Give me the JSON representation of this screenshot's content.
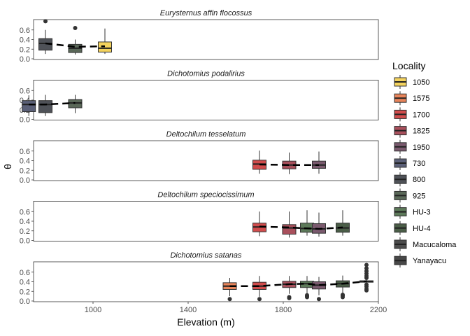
{
  "chart_data": {
    "type": "box",
    "xlabel": "Elevation (m)",
    "ylabel": "θ",
    "xlim": [
      750,
      2200
    ],
    "xticks": [
      1000,
      1400,
      1800,
      2200
    ],
    "ylim": [
      0,
      0.8
    ],
    "yticks": [
      0.0,
      0.2,
      0.4,
      0.6
    ],
    "ytick_labels": [
      "0.0",
      "0.2",
      "0.4",
      "0.6"
    ],
    "legend_title": "Locality",
    "legend": [
      {
        "label": "1050",
        "color": "#f4d35e"
      },
      {
        "label": "1575",
        "color": "#e8845a"
      },
      {
        "label": "1700",
        "color": "#d14c4c"
      },
      {
        "label": "1825",
        "color": "#a9505c"
      },
      {
        "label": "1950",
        "color": "#7a5a6e"
      },
      {
        "label": "730",
        "color": "#5b6078"
      },
      {
        "label": "800",
        "color": "#4f5258"
      },
      {
        "label": "925",
        "color": "#5a6858"
      },
      {
        "label": "HU-3",
        "color": "#5d7a5a"
      },
      {
        "label": "HU-4",
        "color": "#4b5e48"
      },
      {
        "label": "Macucaloma",
        "color": "#4c4c4c"
      },
      {
        "label": "Yanayacu",
        "color": "#484848"
      }
    ],
    "panels": [
      {
        "title": "Eurysternus affin flocossus",
        "boxes": [
          {
            "x": 800,
            "q1": 0.18,
            "median": 0.32,
            "q3": 0.42,
            "lo": 0.1,
            "hi": 0.6,
            "out": [
              0.78
            ],
            "color": "#4f5258"
          },
          {
            "x": 925,
            "q1": 0.13,
            "median": 0.22,
            "q3": 0.3,
            "lo": 0.09,
            "hi": 0.4,
            "out": [
              0.64
            ],
            "color": "#5a6858"
          },
          {
            "x": 1050,
            "q1": 0.14,
            "median": 0.22,
            "q3": 0.35,
            "lo": 0.1,
            "hi": 0.63,
            "out": [],
            "color": "#f4d35e"
          }
        ],
        "trend": [
          [
            800,
            0.32
          ],
          [
            925,
            0.25
          ],
          [
            1050,
            0.26
          ]
        ]
      },
      {
        "title": "Dichotomius podalirius",
        "boxes": [
          {
            "x": 730,
            "q1": 0.16,
            "median": 0.31,
            "q3": 0.39,
            "lo": 0.07,
            "hi": 0.5,
            "out": [],
            "color": "#5b6078"
          },
          {
            "x": 800,
            "q1": 0.14,
            "median": 0.31,
            "q3": 0.39,
            "lo": 0.07,
            "hi": 0.51,
            "out": [],
            "color": "#4f5258"
          },
          {
            "x": 925,
            "q1": 0.24,
            "median": 0.34,
            "q3": 0.41,
            "lo": 0.13,
            "hi": 0.51,
            "out": [],
            "color": "#5a6858"
          }
        ],
        "trend": [
          [
            730,
            0.31
          ],
          [
            800,
            0.31
          ],
          [
            925,
            0.34
          ]
        ]
      },
      {
        "title": "Deltochilum tesselatum",
        "boxes": [
          {
            "x": 1700,
            "q1": 0.22,
            "median": 0.33,
            "q3": 0.41,
            "lo": 0.13,
            "hi": 0.61,
            "out": [],
            "color": "#d14c4c"
          },
          {
            "x": 1825,
            "q1": 0.23,
            "median": 0.31,
            "q3": 0.39,
            "lo": 0.12,
            "hi": 0.57,
            "out": [],
            "color": "#a9505c"
          },
          {
            "x": 1950,
            "q1": 0.24,
            "median": 0.31,
            "q3": 0.39,
            "lo": 0.13,
            "hi": 0.59,
            "out": [],
            "color": "#7a5a6e"
          }
        ],
        "trend": [
          [
            1700,
            0.32
          ],
          [
            1825,
            0.31
          ],
          [
            1950,
            0.31
          ]
        ]
      },
      {
        "title": "Deltochilum speciocissimum",
        "boxes": [
          {
            "x": 1700,
            "q1": 0.18,
            "median": 0.28,
            "q3": 0.36,
            "lo": 0.09,
            "hi": 0.6,
            "out": [],
            "color": "#d14c4c"
          },
          {
            "x": 1825,
            "q1": 0.13,
            "median": 0.26,
            "q3": 0.33,
            "lo": 0.06,
            "hi": 0.6,
            "out": [],
            "color": "#a9505c"
          },
          {
            "x": 1900,
            "q1": 0.17,
            "median": 0.25,
            "q3": 0.36,
            "lo": 0.1,
            "hi": 0.63,
            "out": [],
            "color": "#5d7a5a"
          },
          {
            "x": 1950,
            "q1": 0.15,
            "median": 0.24,
            "q3": 0.35,
            "lo": 0.08,
            "hi": 0.58,
            "out": [],
            "color": "#7a5a6e"
          },
          {
            "x": 2050,
            "q1": 0.17,
            "median": 0.26,
            "q3": 0.36,
            "lo": 0.1,
            "hi": 0.63,
            "out": [],
            "color": "#4b5e48"
          }
        ],
        "trend": [
          [
            1700,
            0.29
          ],
          [
            1825,
            0.27
          ],
          [
            1900,
            0.25
          ],
          [
            1950,
            0.24
          ],
          [
            2050,
            0.27
          ]
        ]
      },
      {
        "title": "Dichotomius satanas",
        "boxes": [
          {
            "x": 1575,
            "q1": 0.24,
            "median": 0.31,
            "q3": 0.38,
            "lo": 0.1,
            "hi": 0.48,
            "out": [
              0.04
            ],
            "color": "#e8845a"
          },
          {
            "x": 1700,
            "q1": 0.24,
            "median": 0.31,
            "q3": 0.39,
            "lo": 0.09,
            "hi": 0.52,
            "out": [
              0.04
            ],
            "color": "#d14c4c"
          },
          {
            "x": 1825,
            "q1": 0.28,
            "median": 0.35,
            "q3": 0.41,
            "lo": 0.15,
            "hi": 0.52,
            "out": [
              0.06,
              0.08
            ],
            "color": "#a9505c"
          },
          {
            "x": 1900,
            "q1": 0.28,
            "median": 0.36,
            "q3": 0.41,
            "lo": 0.15,
            "hi": 0.52,
            "out": [
              0.08,
              0.1,
              0.12
            ],
            "color": "#5d7a5a"
          },
          {
            "x": 1950,
            "q1": 0.25,
            "median": 0.33,
            "q3": 0.4,
            "lo": 0.12,
            "hi": 0.5,
            "out": [
              0.04
            ],
            "color": "#7a5a6e"
          },
          {
            "x": 2050,
            "q1": 0.29,
            "median": 0.36,
            "q3": 0.42,
            "lo": 0.16,
            "hi": 0.53,
            "out": [
              0.08,
              0.11,
              0.13
            ],
            "color": "#4b5e48"
          },
          {
            "x": 2150,
            "q1": 0.39,
            "median": 0.41,
            "q3": 0.42,
            "lo": 0.37,
            "hi": 0.44,
            "out": [
              0.22,
              0.25,
              0.3,
              0.34,
              0.48,
              0.52,
              0.57,
              0.62,
              0.68,
              0.75
            ],
            "color": "#484848"
          }
        ],
        "trend": [
          [
            1575,
            0.31
          ],
          [
            1700,
            0.31
          ],
          [
            1825,
            0.35
          ],
          [
            1900,
            0.36
          ],
          [
            1950,
            0.33
          ],
          [
            2050,
            0.36
          ],
          [
            2150,
            0.41
          ]
        ]
      }
    ]
  }
}
